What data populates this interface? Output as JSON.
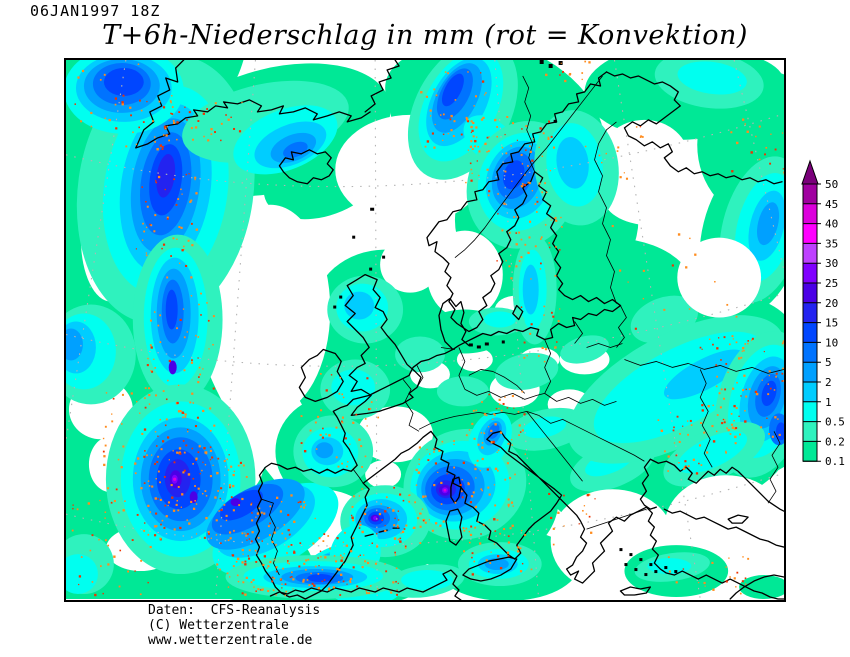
{
  "header": {
    "datetime": "06JAN1997 18Z",
    "title": "T+6h-Niederschlag in mm (rot = Konvektion)"
  },
  "map": {
    "region": "Europe / North Atlantic precipitation field",
    "frame_color": "#000000",
    "coastline_color": "#000000",
    "graticule_color": "#b4b4b4",
    "convection_note": "rot = Konvektion",
    "convection_colors": [
      "#ff8c1e",
      "#f03200"
    ]
  },
  "palette": {
    "arrow": "#7A007A",
    "lv0": "#A000A0",
    "lv1": "#DC00DC",
    "lv2": "#FF00FF",
    "lv3": "#BE41FF",
    "lv4": "#8000FF",
    "lv5": "#4B00E6",
    "lv6": "#2323F0",
    "lv7": "#0046FF",
    "lv8": "#0073FF",
    "lv9": "#00A0FF",
    "lv10": "#00CDFF",
    "lv11": "#00FFF0",
    "lv12": "#2FF2BE",
    "lv13": "#00E896"
  },
  "legend": {
    "unit": "mm",
    "values": [
      "50",
      "45",
      "40",
      "35",
      "30",
      "25",
      "20",
      "15",
      "10",
      "5",
      "2",
      "1",
      "0.5",
      "0.2",
      "0.1"
    ]
  },
  "footer": {
    "lines": [
      "Daten:  CFS-Reanalysis",
      "(C) Wetterzentrale",
      "www.wetterzentrale.de"
    ]
  }
}
